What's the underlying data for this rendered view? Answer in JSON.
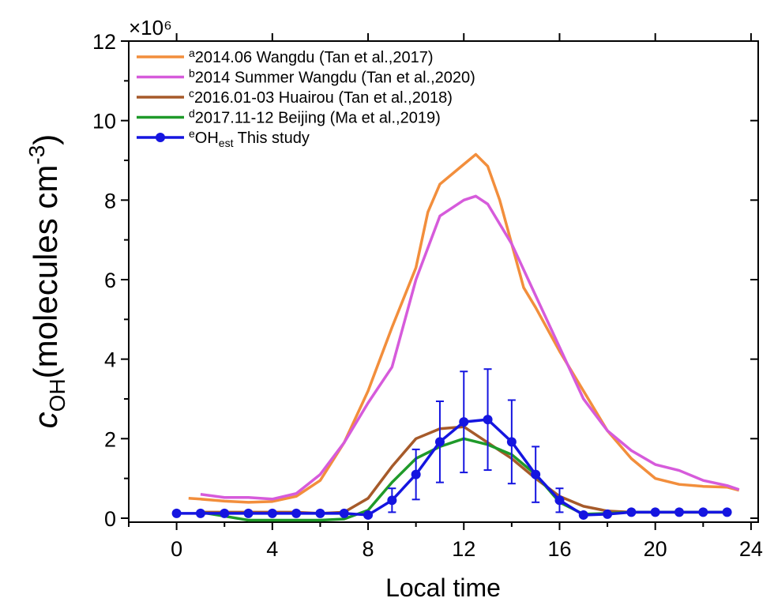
{
  "chart_data": {
    "type": "line",
    "y_multiplier": "×10⁶",
    "ylabel": {
      "main": "c",
      "sub": "OH",
      "text": "(molecules cm",
      "sup": "-3",
      "end": ")"
    },
    "xlabel": "Local time",
    "xlim": [
      -2,
      24.3
    ],
    "xticks": [
      0,
      4,
      8,
      12,
      16,
      20,
      24
    ],
    "xminor": [
      -2,
      2,
      6,
      10,
      14,
      18,
      22
    ],
    "ylim": [
      -0.1,
      12
    ],
    "yticks": [
      0,
      2,
      4,
      6,
      8,
      10,
      12
    ],
    "yminor": [
      1,
      3,
      5,
      7,
      9,
      11
    ],
    "legend": "upper left",
    "series": [
      {
        "name_sup": "a",
        "name": "2014.06 Wangdu (Tan et al.,2017)",
        "color": "#f28e3c",
        "x": [
          0.5,
          1,
          2,
          3,
          4,
          5,
          6,
          7,
          8,
          9,
          10,
          10.5,
          11,
          12,
          12.5,
          13,
          13.5,
          14,
          14.5,
          15,
          16,
          17,
          18,
          19,
          20,
          21,
          22,
          23,
          23.5
        ],
        "values": [
          0.5,
          0.48,
          0.43,
          0.4,
          0.42,
          0.55,
          0.95,
          1.9,
          3.2,
          4.8,
          6.3,
          7.7,
          8.4,
          8.9,
          9.15,
          8.85,
          8.0,
          6.9,
          5.8,
          5.3,
          4.2,
          3.2,
          2.2,
          1.5,
          1.0,
          0.85,
          0.8,
          0.78,
          0.7
        ]
      },
      {
        "name_sup": "b",
        "name": "2014 Summer Wangdu (Tan et al.,2020)",
        "color": "#d65bdb",
        "x": [
          1,
          2,
          3,
          4,
          5,
          6,
          7,
          8,
          9,
          10,
          11,
          12,
          12.5,
          13,
          14,
          15,
          16,
          17,
          18,
          19,
          20,
          21,
          22,
          23,
          23.5
        ],
        "values": [
          0.6,
          0.52,
          0.52,
          0.48,
          0.62,
          1.1,
          1.9,
          2.9,
          3.8,
          6.0,
          7.6,
          8.0,
          8.1,
          7.9,
          6.9,
          5.6,
          4.3,
          3.0,
          2.2,
          1.7,
          1.35,
          1.2,
          0.95,
          0.82,
          0.72
        ]
      },
      {
        "name_sup": "c",
        "name": "2016.01-03 Huairou (Tan et al.,2018)",
        "color": "#a65a2a",
        "x": [
          1,
          2,
          3,
          4,
          5,
          6,
          7,
          8,
          9,
          10,
          11,
          12,
          13,
          14,
          15,
          16,
          17,
          18,
          19,
          20,
          21,
          22,
          23
        ],
        "values": [
          0.15,
          0.15,
          0.15,
          0.15,
          0.15,
          0.12,
          0.15,
          0.5,
          1.3,
          2.0,
          2.25,
          2.3,
          1.9,
          1.5,
          1.0,
          0.55,
          0.3,
          0.18,
          0.15,
          0.15,
          0.15,
          0.15,
          0.15
        ]
      },
      {
        "name_sup": "d",
        "name": "2017.11-12 Beijing (Ma et al.,2019)",
        "color": "#1f9a2a",
        "x": [
          1,
          2,
          3,
          4,
          5,
          6,
          7,
          8,
          9,
          10,
          11,
          12,
          13,
          14,
          15,
          16,
          17,
          18,
          19,
          20,
          21,
          22,
          23
        ],
        "values": [
          0.15,
          0.05,
          -0.05,
          -0.05,
          -0.05,
          -0.05,
          -0.02,
          0.2,
          0.9,
          1.5,
          1.8,
          2.0,
          1.85,
          1.6,
          1.1,
          0.4,
          0.1,
          0.12,
          0.15,
          0.15,
          0.15,
          0.15,
          0.15
        ]
      },
      {
        "name_sup": "e",
        "name": "OH",
        "name_sub": "est",
        "name_suffix": " This study",
        "color": "#1515e0",
        "markers": true,
        "x": [
          0,
          1,
          2,
          3,
          4,
          5,
          6,
          7,
          8,
          9,
          10,
          11,
          12,
          13,
          14,
          15,
          16,
          17,
          18,
          19,
          20,
          21,
          22,
          23
        ],
        "values": [
          0.12,
          0.12,
          0.12,
          0.12,
          0.12,
          0.12,
          0.12,
          0.12,
          0.08,
          0.45,
          1.1,
          1.92,
          2.42,
          2.48,
          1.92,
          1.1,
          0.45,
          0.08,
          0.1,
          0.15,
          0.15,
          0.15,
          0.15,
          0.15
        ],
        "errors": [
          null,
          null,
          null,
          null,
          null,
          null,
          null,
          null,
          null,
          0.3,
          0.63,
          1.02,
          1.27,
          1.27,
          1.05,
          0.7,
          0.3,
          null,
          null,
          null,
          null,
          null,
          null,
          null
        ]
      }
    ]
  }
}
